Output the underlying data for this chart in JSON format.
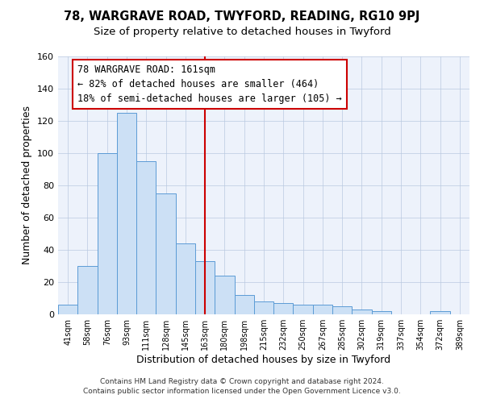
{
  "title": "78, WARGRAVE ROAD, TWYFORD, READING, RG10 9PJ",
  "subtitle": "Size of property relative to detached houses in Twyford",
  "xlabel": "Distribution of detached houses by size in Twyford",
  "ylabel": "Number of detached properties",
  "bar_labels": [
    "41sqm",
    "58sqm",
    "76sqm",
    "93sqm",
    "111sqm",
    "128sqm",
    "145sqm",
    "163sqm",
    "180sqm",
    "198sqm",
    "215sqm",
    "232sqm",
    "250sqm",
    "267sqm",
    "285sqm",
    "302sqm",
    "319sqm",
    "337sqm",
    "354sqm",
    "372sqm",
    "389sqm"
  ],
  "bar_values": [
    6,
    30,
    100,
    125,
    95,
    75,
    44,
    33,
    24,
    12,
    8,
    7,
    6,
    6,
    5,
    3,
    2,
    0,
    0,
    2,
    0
  ],
  "bar_color": "#cce0f5",
  "bar_edge_color": "#5b9bd5",
  "vline_x": 7,
  "vline_color": "#cc0000",
  "ylim": [
    0,
    160
  ],
  "yticks": [
    0,
    20,
    40,
    60,
    80,
    100,
    120,
    140,
    160
  ],
  "annotation_title": "78 WARGRAVE ROAD: 161sqm",
  "annotation_line1": "← 82% of detached houses are smaller (464)",
  "annotation_line2": "18% of semi-detached houses are larger (105) →",
  "annotation_box_edge": "#cc0000",
  "footer_line1": "Contains HM Land Registry data © Crown copyright and database right 2024.",
  "footer_line2": "Contains public sector information licensed under the Open Government Licence v3.0.",
  "title_fontsize": 10.5,
  "subtitle_fontsize": 9.5,
  "annotation_fontsize": 8.5,
  "footer_fontsize": 6.5
}
